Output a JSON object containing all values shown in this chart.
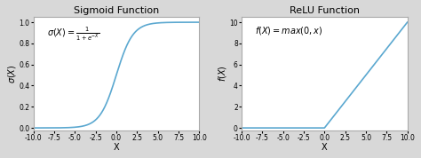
{
  "fig_width": 4.74,
  "fig_height": 1.78,
  "dpi": 100,
  "fig_bg_color": "#d8d8d8",
  "axes_bg_color": "#ffffff",
  "line_color": "#5ba8d0",
  "line_width": 1.2,
  "sigmoid_title": "Sigmoid Function",
  "relu_title": "ReLU Function",
  "sigmoid_xlabel": "X",
  "relu_xlabel": "X",
  "sigmoid_ylabel": "$\\sigma(X)$",
  "relu_ylabel": "$f(X)$",
  "sigmoid_annotation": "$\\sigma(X) = \\frac{1}{1+e^{-X}}$",
  "relu_annotation": "$f(X) = max(0, x)$",
  "x_min": -10,
  "x_max": 10,
  "sigmoid_ylim": [
    -0.02,
    1.05
  ],
  "relu_ylim": [
    -0.2,
    10.5
  ],
  "x_ticks": [
    -10.0,
    -7.5,
    -5.0,
    -2.5,
    0.0,
    2.5,
    5.0,
    7.5,
    10.0
  ],
  "sigmoid_yticks": [
    0.0,
    0.2,
    0.4,
    0.6,
    0.8,
    1.0
  ],
  "relu_yticks": [
    0,
    2,
    4,
    6,
    8,
    10
  ],
  "title_fontsize": 8,
  "label_fontsize": 7,
  "tick_fontsize": 5.5,
  "annotation_fontsize": 7,
  "spine_color": "#aaaaaa"
}
